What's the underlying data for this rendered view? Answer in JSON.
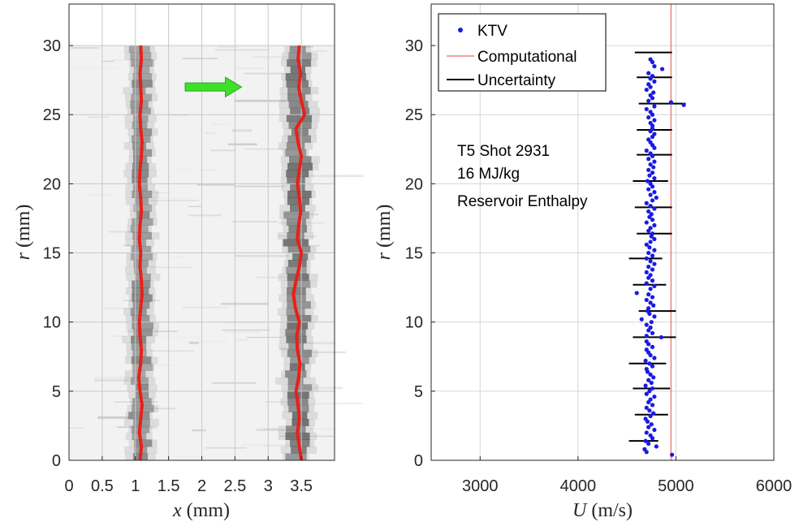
{
  "chart_data": [
    {
      "type": "image",
      "xlabel_var": "x",
      "xlabel_unit": "(mm)",
      "ylabel_var": "r",
      "ylabel_unit": "(mm)",
      "xlim": [
        0,
        4.0
      ],
      "ylim": [
        0,
        33
      ],
      "xticks": [
        0,
        0.5,
        1,
        1.5,
        2,
        2.5,
        3,
        3.5
      ],
      "xtick_labels": [
        "0",
        "0.5",
        "1",
        "1.5",
        "2",
        "2.5",
        "3",
        "3.5"
      ],
      "yticks": [
        0,
        5,
        10,
        15,
        20,
        25,
        30
      ],
      "ytick_labels": [
        "0",
        "5",
        "10",
        "15",
        "20",
        "25",
        "30"
      ],
      "grid": true,
      "image_extent_r": [
        0,
        30
      ],
      "dark_bands": [
        {
          "x_center": 1.08,
          "half_width": 0.12
        },
        {
          "x_center": 3.45,
          "half_width": 0.14
        }
      ],
      "tracked_fronts": [
        {
          "color": "#e8201a",
          "x": [
            1.07,
            1.09,
            1.06,
            1.08,
            1.1,
            1.07,
            1.05,
            1.08,
            1.09,
            1.07,
            1.06,
            1.08,
            1.1,
            1.09,
            1.07,
            1.08,
            1.06,
            1.07,
            1.09,
            1.08,
            1.06,
            1.07,
            1.09,
            1.1,
            1.08,
            1.07,
            1.09,
            1.08,
            1.07,
            1.09,
            1.08
          ],
          "r": [
            0,
            1,
            2,
            3,
            4,
            5,
            6,
            7,
            8,
            9,
            10,
            11,
            12,
            13,
            14,
            15,
            16,
            17,
            18,
            19,
            20,
            21,
            22,
            23,
            24,
            25,
            26,
            27,
            28,
            29,
            30
          ]
        },
        {
          "color": "#e8201a",
          "x": [
            3.5,
            3.47,
            3.44,
            3.47,
            3.45,
            3.42,
            3.46,
            3.48,
            3.44,
            3.43,
            3.47,
            3.41,
            3.38,
            3.42,
            3.47,
            3.5,
            3.44,
            3.46,
            3.49,
            3.47,
            3.44,
            3.47,
            3.5,
            3.45,
            3.42,
            3.55,
            3.5,
            3.46,
            3.49,
            3.45,
            3.47
          ],
          "r": [
            0,
            1,
            2,
            3,
            4,
            5,
            6,
            7,
            8,
            9,
            10,
            11,
            12,
            13,
            14,
            15,
            16,
            17,
            18,
            19,
            20,
            21,
            22,
            23,
            24,
            25,
            26,
            27,
            28,
            29,
            30
          ]
        }
      ],
      "arrow": {
        "color": "#3ee02a",
        "x_start": 1.75,
        "x_end": 2.6,
        "r": 27
      }
    },
    {
      "type": "scatter",
      "xlabel_var": "U",
      "xlabel_unit": "(m/s)",
      "ylabel_var": "r",
      "ylabel_unit": "(mm)",
      "xlim": [
        2500,
        6000
      ],
      "ylim": [
        0,
        33
      ],
      "xticks": [
        3000,
        4000,
        5000,
        6000
      ],
      "xtick_labels": [
        "3000",
        "4000",
        "5000",
        "6000"
      ],
      "yticks": [
        0,
        5,
        10,
        15,
        20,
        25,
        30
      ],
      "ytick_labels": [
        "0",
        "5",
        "10",
        "15",
        "20",
        "25",
        "30"
      ],
      "grid": true,
      "legend": {
        "placement": "top-left",
        "entries": [
          {
            "label": "KTV",
            "color": "#1a1ae6",
            "marker": "dot"
          },
          {
            "label": "Computational",
            "color": "#f08080",
            "marker": "line"
          },
          {
            "label": "Uncertainty",
            "color": "#000000",
            "marker": "line"
          }
        ]
      },
      "annotation": [
        "T5 Shot 2931",
        "16 MJ/kg",
        "Reservoir Enthalpy"
      ],
      "computational": {
        "x": 4950,
        "color": "#f08080"
      },
      "ktv": {
        "color": "#1a1ae6",
        "x": [
          4960,
          4700,
          4680,
          4800,
          4720,
          4690,
          4760,
          4740,
          4700,
          4780,
          4720,
          4750,
          4710,
          4690,
          4740,
          4770,
          4730,
          4700,
          4760,
          4720,
          4740,
          4780,
          4700,
          4730,
          4760,
          4690,
          4750,
          4720,
          4770,
          4740,
          4710,
          4700,
          4760,
          4730,
          4690,
          4780,
          4740,
          4720,
          4700,
          4760,
          4850,
          4720,
          4700,
          4600,
          4720,
          4650,
          4700,
          4760,
          4720,
          4740,
          4700,
          4750,
          4780,
          4730,
          4710,
          4770,
          4740,
          4700,
          4760,
          4720,
          4740,
          4780,
          4700,
          4760,
          4720,
          4740,
          4700,
          4760,
          4720,
          4780,
          4740,
          4700,
          4760,
          4720,
          4780,
          4730,
          4700,
          4740,
          4780,
          4750,
          4760,
          4720,
          4740,
          4780,
          4700,
          4760,
          4730,
          4750,
          4720,
          4780,
          4740,
          4700,
          4760,
          4800,
          4740,
          4780,
          4720,
          4760,
          4740,
          4710,
          4780,
          4730,
          4760,
          4720,
          4770,
          4740,
          4780,
          4720,
          4760,
          4740,
          4700,
          4780,
          4760,
          4740,
          4720,
          4760,
          4780,
          4740,
          4760,
          5080,
          4950,
          4760,
          4740,
          4780,
          4720,
          4760,
          4740,
          4700,
          4780,
          4720,
          4860,
          4760,
          4740,
          4770,
          4700,
          4740,
          4720,
          4780,
          4740,
          4760,
          4720,
          4780,
          4760,
          4740
        ],
        "r": [
          0.4,
          0.6,
          0.8,
          1.0,
          1.2,
          1.4,
          1.6,
          1.8,
          2.0,
          2.2,
          2.4,
          2.6,
          2.8,
          3.0,
          3.2,
          3.4,
          3.6,
          3.8,
          4.0,
          4.2,
          4.4,
          4.6,
          4.8,
          5.0,
          5.2,
          5.4,
          5.6,
          5.8,
          6.0,
          6.2,
          6.4,
          6.6,
          6.8,
          7.0,
          7.2,
          7.4,
          7.6,
          7.8,
          8.0,
          8.2,
          8.9,
          8.4,
          8.6,
          12.1,
          11.0,
          10.2,
          9.0,
          9.2,
          9.4,
          9.6,
          9.8,
          10.0,
          10.4,
          10.6,
          10.8,
          11.2,
          11.4,
          11.6,
          11.8,
          12.0,
          12.4,
          12.6,
          12.8,
          13.0,
          13.2,
          13.4,
          13.6,
          13.8,
          14.0,
          14.2,
          14.4,
          14.6,
          14.8,
          15.0,
          15.2,
          15.4,
          15.6,
          15.8,
          16.0,
          16.2,
          16.4,
          16.6,
          16.8,
          17.0,
          17.2,
          17.4,
          17.6,
          17.8,
          18.0,
          18.2,
          18.4,
          18.6,
          18.8,
          19.0,
          19.2,
          19.4,
          19.6,
          19.8,
          20.0,
          20.2,
          20.4,
          20.6,
          20.8,
          21.0,
          21.2,
          21.4,
          21.6,
          21.8,
          22.0,
          22.2,
          22.4,
          22.6,
          22.8,
          23.0,
          23.2,
          23.4,
          23.6,
          23.8,
          24.0,
          25.7,
          25.9,
          24.2,
          24.4,
          24.6,
          24.8,
          25.0,
          25.2,
          25.4,
          25.6,
          26.0,
          28.3,
          26.2,
          26.4,
          26.6,
          26.8,
          27.0,
          27.2,
          27.4,
          27.6,
          27.8,
          28.0,
          28.5,
          28.8,
          29.0
        ]
      },
      "uncertainty": {
        "color": "#000000",
        "bars": [
          {
            "r": 1.4,
            "x_min": 4520,
            "x_max": 4820
          },
          {
            "r": 3.3,
            "x_min": 4580,
            "x_max": 4920
          },
          {
            "r": 5.2,
            "x_min": 4560,
            "x_max": 4940
          },
          {
            "r": 7.0,
            "x_min": 4520,
            "x_max": 4900
          },
          {
            "r": 8.9,
            "x_min": 4560,
            "x_max": 5000
          },
          {
            "r": 10.8,
            "x_min": 4620,
            "x_max": 5000
          },
          {
            "r": 12.7,
            "x_min": 4560,
            "x_max": 4900
          },
          {
            "r": 14.6,
            "x_min": 4520,
            "x_max": 4860
          },
          {
            "r": 16.4,
            "x_min": 4600,
            "x_max": 4960
          },
          {
            "r": 18.3,
            "x_min": 4580,
            "x_max": 4960
          },
          {
            "r": 20.2,
            "x_min": 4560,
            "x_max": 4920
          },
          {
            "r": 22.1,
            "x_min": 4600,
            "x_max": 4960
          },
          {
            "r": 23.9,
            "x_min": 4600,
            "x_max": 4960
          },
          {
            "r": 25.8,
            "x_min": 4620,
            "x_max": 5100
          },
          {
            "r": 27.7,
            "x_min": 4600,
            "x_max": 4960
          },
          {
            "r": 29.5,
            "x_min": 4580,
            "x_max": 4960
          }
        ]
      }
    }
  ]
}
